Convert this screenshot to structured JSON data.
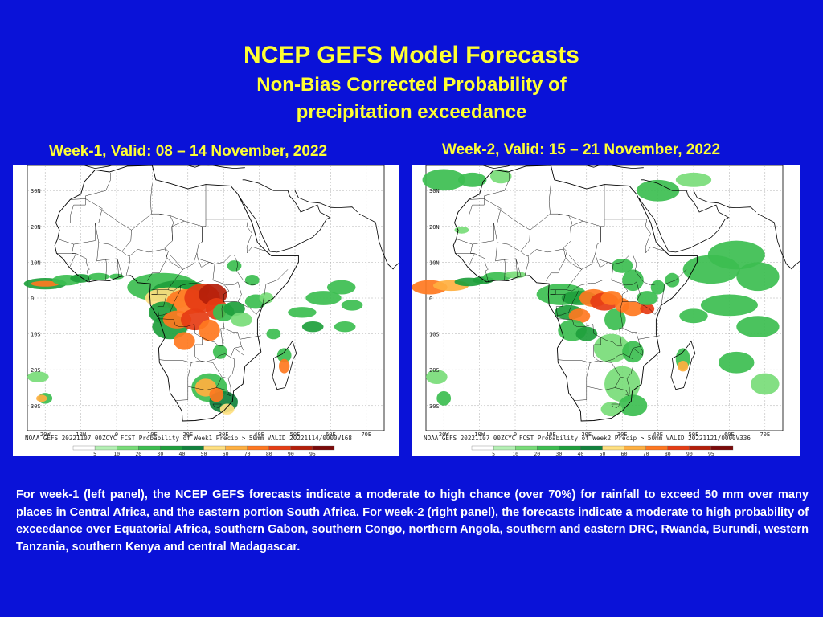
{
  "title": "NCEP GEFS Model Forecasts",
  "subtitle_line1": "Non-Bias Corrected Probability of",
  "subtitle_line2": "precipitation exceedance",
  "panels": [
    {
      "caption": "Week-1, Valid: 08 – 14 November, 2022",
      "footer": "NOAA GEFS 20221107 00ZCYC FCST Probability of Week1 Precip > 50mm  VALID 20221114/0000V168",
      "lat_labels": [
        "30N",
        "20N",
        "10N",
        "0",
        "10S",
        "20S",
        "30S"
      ],
      "lon_labels": [
        "20W",
        "10W",
        "0",
        "10E",
        "20E",
        "30E",
        "40E",
        "50E",
        "60E",
        "70E"
      ]
    },
    {
      "caption": "Week-2, Valid: 15 – 21 November, 2022",
      "footer": "NOAA GEFS 20221107 00ZCYC FCST Probability of Week2 Precip > 50mm  VALID 20221121/0000V336",
      "lat_labels": [
        "30N",
        "20N",
        "10N",
        "0",
        "10S",
        "20S",
        "30S"
      ],
      "lon_labels": [
        "20W",
        "10W",
        "0",
        "10E",
        "20E",
        "30E",
        "40E",
        "50E",
        "60E",
        "70E"
      ]
    }
  ],
  "legend": {
    "levels": [
      "5",
      "10",
      "20",
      "30",
      "40",
      "50",
      "60",
      "70",
      "80",
      "90",
      "95"
    ],
    "colors": [
      "#ffffff",
      "#b4f0b4",
      "#78dc78",
      "#3cbe50",
      "#1ea03c",
      "#10823c",
      "#ffe080",
      "#ffb040",
      "#ff7820",
      "#e63c14",
      "#b41e0a",
      "#7a0a0a"
    ]
  },
  "description": "For week-1 (left panel), the NCEP GEFS forecasts indicate a moderate to high chance (over 70%) for rainfall to exceed 50 mm over many places in Central Africa, and the eastern portion South Africa. For week-2 (right panel), the forecasts indicate a moderate to high probability of exceedance over Equatorial Africa, southern Gabon, southern Congo, northern Angola, southern and eastern DRC, Rwanda, Burundi, western Tanzania, southern Kenya and central Madagascar."
}
